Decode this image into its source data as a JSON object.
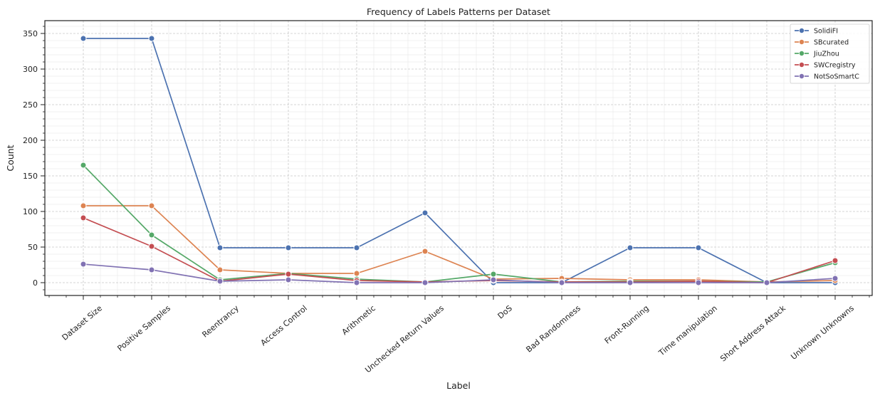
{
  "chart_data": {
    "type": "line",
    "title": "Frequency of Labels Patterns per Dataset",
    "xlabel": "Label",
    "ylabel": "Count",
    "categories": [
      "Dataset Size",
      "Positive Samples",
      "Reentrancy",
      "Access Control",
      "Arithmetic",
      "Unchecked Return Values",
      "DoS",
      "Bad Randomness",
      "Front-Running",
      "Time manipulation",
      "Short Address Attack",
      "Unknown Unknowns"
    ],
    "ylim": [
      -15,
      360
    ],
    "yticks": [
      0,
      50,
      100,
      150,
      200,
      250,
      300,
      350
    ],
    "grid": true,
    "legend_position": "top-right",
    "series": [
      {
        "name": "SolidiFI",
        "color": "#4c72b0",
        "values": [
          343,
          343,
          49,
          49,
          49,
          98,
          0,
          0,
          49,
          49,
          0,
          0
        ]
      },
      {
        "name": "SBcurated",
        "color": "#dd8452",
        "values": [
          108,
          108,
          18,
          13,
          13,
          44,
          5,
          6,
          4,
          4,
          1,
          3
        ]
      },
      {
        "name": "JiuZhou",
        "color": "#55a868",
        "values": [
          165,
          67,
          4,
          13,
          5,
          1,
          12,
          1,
          2,
          2,
          1,
          28
        ]
      },
      {
        "name": "SWCregistry",
        "color": "#c44e52",
        "values": [
          91,
          51,
          2,
          12,
          3,
          1,
          3,
          1,
          1,
          2,
          0,
          31
        ]
      },
      {
        "name": "NotSoSmartC",
        "color": "#8172b3",
        "values": [
          26,
          18,
          2,
          4,
          0,
          0,
          4,
          0,
          0,
          0,
          0,
          6
        ]
      }
    ]
  }
}
